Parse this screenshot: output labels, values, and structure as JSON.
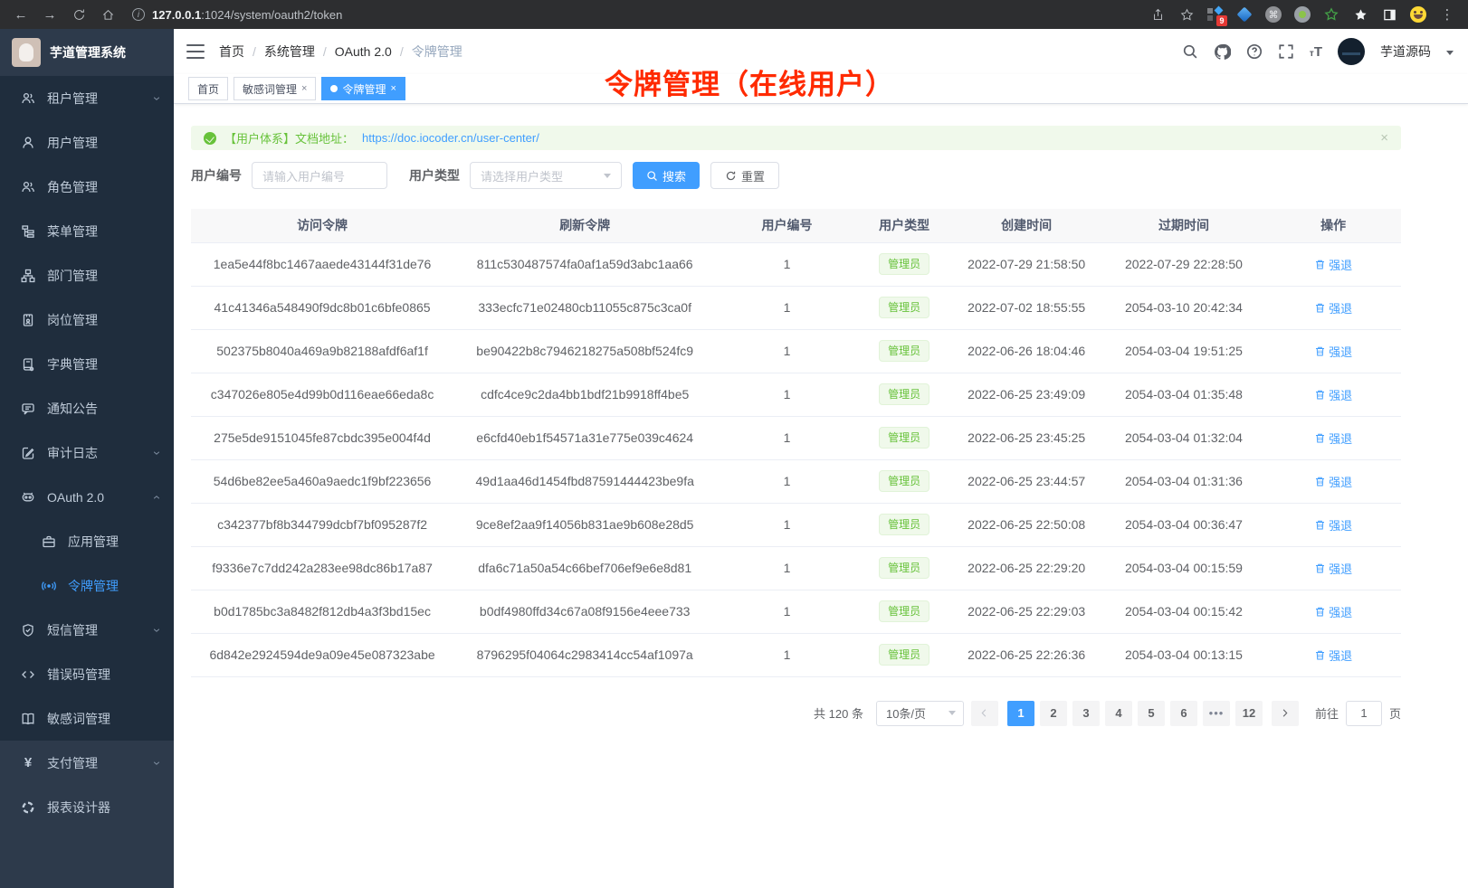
{
  "colors": {
    "primary": "#409eff",
    "success": "#67c23a",
    "annotation_red": "#ff2a00",
    "sidebar_bg": "#2d3a4b",
    "submenu_bg": "#1f2d3d",
    "tag_active": "#409eff"
  },
  "browser": {
    "url_host": "127.0.0.1",
    "url_rest": ":1024/system/oauth2/token",
    "extension_badge": "9"
  },
  "sidebar": {
    "app_title": "芋道管理系统",
    "items": [
      "租户管理",
      "用户管理",
      "角色管理",
      "菜单管理",
      "部门管理",
      "岗位管理",
      "字典管理",
      "通知公告",
      "审计日志",
      "OAuth 2.0",
      "应用管理",
      "令牌管理",
      "短信管理",
      "错误码管理",
      "敏感词管理",
      "支付管理",
      "报表设计器"
    ]
  },
  "header": {
    "breadcrumb": [
      "首页",
      "系统管理",
      "OAuth 2.0",
      "令牌管理"
    ],
    "username": "芋道源码"
  },
  "annotation": "令牌管理（在线用户）",
  "tags": {
    "home": "首页",
    "sensitive": "敏感词管理",
    "token": "令牌管理"
  },
  "alert": {
    "text": "【用户体系】文档地址：",
    "link": "https://doc.iocoder.cn/user-center/"
  },
  "filters": {
    "user_id_label": "用户编号",
    "user_id_placeholder": "请输入用户编号",
    "user_type_label": "用户类型",
    "user_type_placeholder": "请选择用户类型",
    "search_label": "搜索",
    "reset_label": "重置"
  },
  "table": {
    "headers": [
      "访问令牌",
      "刷新令牌",
      "用户编号",
      "用户类型",
      "创建时间",
      "过期时间",
      "操作"
    ],
    "user_type_badge": "管理员",
    "action_label": "强退",
    "rows": [
      {
        "access_token": "1ea5e44f8bc1467aaede43144f31de76",
        "refresh_token": "811c530487574fa0af1a59d3abc1aa66",
        "user_id": "1",
        "create_time": "2022-07-29 21:58:50",
        "expire_time": "2022-07-29 22:28:50"
      },
      {
        "access_token": "41c41346a548490f9dc8b01c6bfe0865",
        "refresh_token": "333ecfc71e02480cb11055c875c3ca0f",
        "user_id": "1",
        "create_time": "2022-07-02 18:55:55",
        "expire_time": "2054-03-10 20:42:34"
      },
      {
        "access_token": "502375b8040a469a9b82188afdf6af1f",
        "refresh_token": "be90422b8c7946218275a508bf524fc9",
        "user_id": "1",
        "create_time": "2022-06-26 18:04:46",
        "expire_time": "2054-03-04 19:51:25"
      },
      {
        "access_token": "c347026e805e4d99b0d116eae66eda8c",
        "refresh_token": "cdfc4ce9c2da4bb1bdf21b9918ff4be5",
        "user_id": "1",
        "create_time": "2022-06-25 23:49:09",
        "expire_time": "2054-03-04 01:35:48"
      },
      {
        "access_token": "275e5de9151045fe87cbdc395e004f4d",
        "refresh_token": "e6cfd40eb1f54571a31e775e039c4624",
        "user_id": "1",
        "create_time": "2022-06-25 23:45:25",
        "expire_time": "2054-03-04 01:32:04"
      },
      {
        "access_token": "54d6be82ee5a460a9aedc1f9bf223656",
        "refresh_token": "49d1aa46d1454fbd87591444423be9fa",
        "user_id": "1",
        "create_time": "2022-06-25 23:44:57",
        "expire_time": "2054-03-04 01:31:36"
      },
      {
        "access_token": "c342377bf8b344799dcbf7bf095287f2",
        "refresh_token": "9ce8ef2aa9f14056b831ae9b608e28d5",
        "user_id": "1",
        "create_time": "2022-06-25 22:50:08",
        "expire_time": "2054-03-04 00:36:47"
      },
      {
        "access_token": "f9336e7c7dd242a283ee98dc86b17a87",
        "refresh_token": "dfa6c71a50a54c66bef706ef9e6e8d81",
        "user_id": "1",
        "create_time": "2022-06-25 22:29:20",
        "expire_time": "2054-03-04 00:15:59"
      },
      {
        "access_token": "b0d1785bc3a8482f812db4a3f3bd15ec",
        "refresh_token": "b0df4980ffd34c67a08f9156e4eee733",
        "user_id": "1",
        "create_time": "2022-06-25 22:29:03",
        "expire_time": "2054-03-04 00:15:42"
      },
      {
        "access_token": "6d842e2924594de9a09e45e087323abe",
        "refresh_token": "8796295f04064c2983414cc54af1097a",
        "user_id": "1",
        "create_time": "2022-06-25 22:26:36",
        "expire_time": "2054-03-04 00:13:15"
      }
    ]
  },
  "pagination": {
    "total_text": "共 120 条",
    "page_size_value": "10条/页",
    "pages": [
      "1",
      "2",
      "3",
      "4",
      "5",
      "6",
      "...",
      "12"
    ],
    "active_page": "1",
    "goto_label": "前往",
    "goto_value": "1",
    "goto_unit": "页"
  }
}
